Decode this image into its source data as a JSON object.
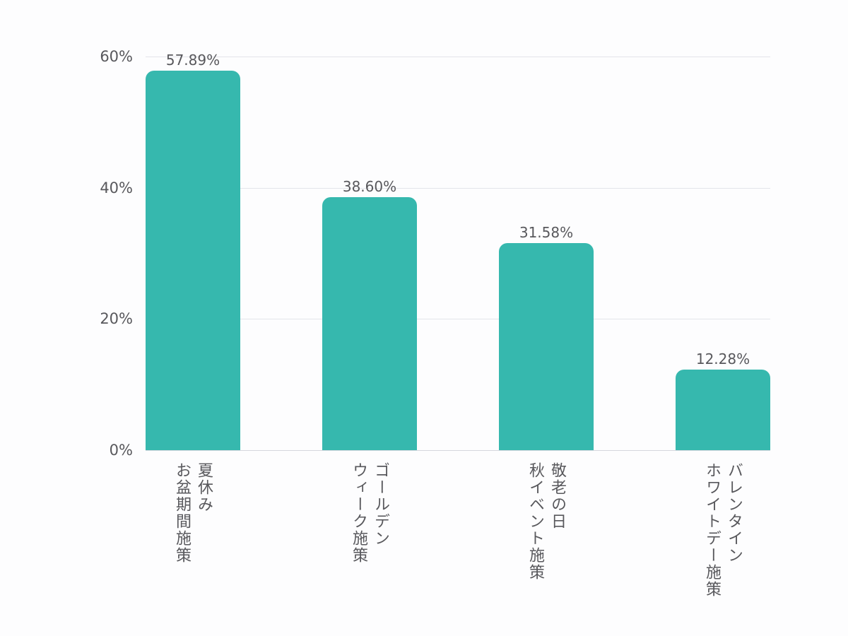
{
  "chart_data": {
    "type": "bar",
    "title": "",
    "xlabel": "",
    "ylabel": "",
    "categories": [
      "夏休み\nお盆期間施策",
      "ゴールデン\nウィーク施策",
      "敬老の日\n秋イベント施策",
      "バレンタイン\nホワイトデー施策"
    ],
    "values": [
      57.89,
      38.6,
      31.58,
      12.28
    ],
    "value_labels": [
      "57.89%",
      "38.60%",
      "31.58%",
      "12.28%"
    ],
    "ylim": [
      0,
      60
    ],
    "yticks": [
      0,
      20,
      40,
      60
    ],
    "ytick_labels": [
      "0%",
      "20%",
      "40%",
      "60%"
    ],
    "grid": true,
    "legend": null,
    "bar_color": "#36b8ae"
  }
}
